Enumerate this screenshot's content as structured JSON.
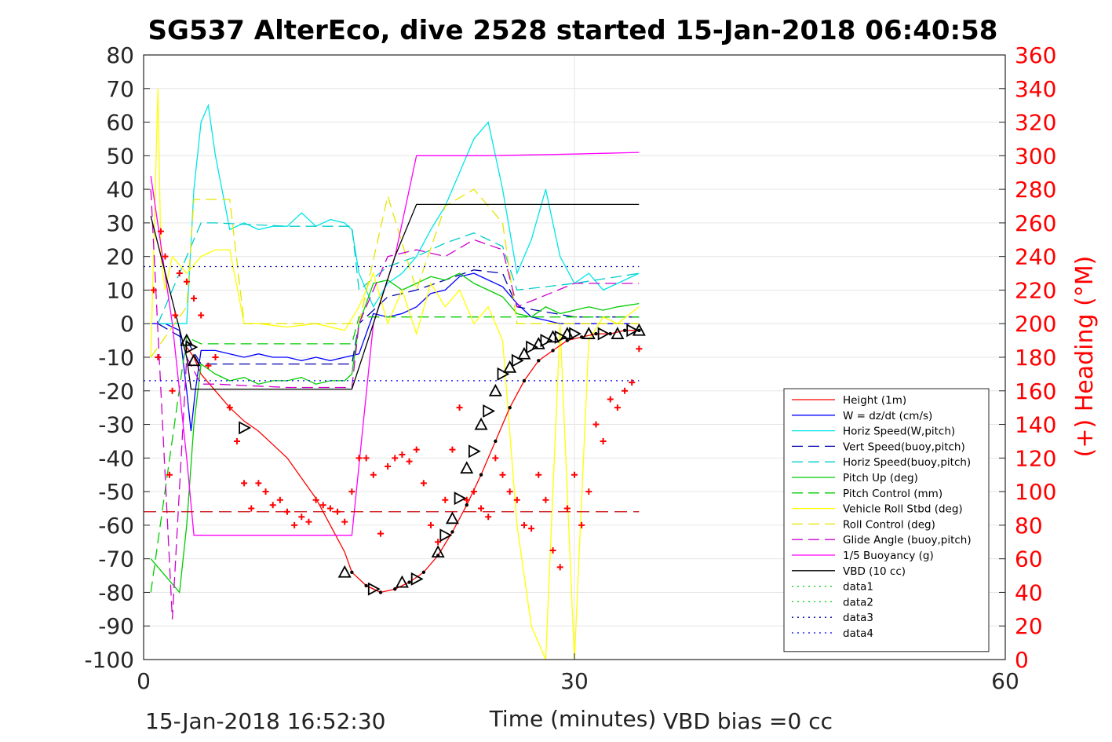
{
  "chart_data": {
    "type": "line",
    "title": "SG537 AlterEco, dive 2528 started 15-Jan-2018 06:40:58",
    "xlabel": "Time (minutes)",
    "ylabel_right": "(+) Heading (°M)",
    "xlim": [
      0,
      60
    ],
    "ylim_left": [
      -100,
      80
    ],
    "ylim_right": [
      0,
      360
    ],
    "x_ticks": [
      "0",
      "30",
      "60"
    ],
    "y_ticks_left": [
      "80",
      "70",
      "60",
      "50",
      "40",
      "30",
      "20",
      "10",
      "0",
      "-10",
      "-20",
      "-30",
      "-40",
      "-50",
      "-60",
      "-70",
      "-80",
      "-90",
      "-100"
    ],
    "y_ticks_right": [
      "360",
      "340",
      "320",
      "300",
      "280",
      "260",
      "240",
      "220",
      "200",
      "180",
      "160",
      "140",
      "120",
      "100",
      "80",
      "60",
      "40",
      "20",
      "0"
    ],
    "grid": true,
    "legend_position": "lower-right",
    "colors": {
      "height": "#ff0000",
      "w": "#0000ff",
      "horiz_w": "#00e6e6",
      "vert_buoy": "#0000aa",
      "horiz_buoy": "#00cccc",
      "pitch": "#00cc00",
      "pitch_ctrl": "#00cc00",
      "roll": "#ffff00",
      "roll_ctrl": "#e6e600",
      "glide": "#cc00cc",
      "buoy": "#ff00ff",
      "vbd": "#000000",
      "heading_marker": "#ff0000"
    },
    "series": [
      {
        "name": "Height (1m)",
        "style": "solid",
        "color": "#ff0000",
        "x": [
          3.0,
          3.5,
          4.0,
          5.0,
          6.0,
          7.0,
          8.0,
          9.0,
          10.0,
          11.0,
          12.0,
          13.0,
          14.0,
          14.5
        ],
        "y": [
          -7,
          -10,
          -15,
          -20,
          -25,
          -29,
          -32,
          -36,
          -40,
          -46,
          -52,
          -60,
          -68,
          -74
        ]
      },
      {
        "name": "W = dz/dt (cm/s)",
        "style": "solid",
        "color": "#0000ff",
        "x": [
          0.5,
          1.5,
          2.5,
          3.0,
          3.3,
          3.6,
          4.0,
          5,
          6,
          7,
          8,
          9,
          10,
          11,
          12,
          13,
          14,
          15,
          16,
          17,
          18,
          19,
          20,
          21,
          22,
          23,
          24,
          25,
          26,
          27,
          28,
          29,
          30,
          31,
          32,
          33,
          34.5
        ],
        "y": [
          0,
          0,
          -2,
          -20,
          -32,
          -20,
          -8,
          -8,
          -9,
          -10,
          -9,
          -10,
          -10,
          -11,
          -10,
          -11,
          -10,
          -9,
          3,
          2,
          3,
          5,
          9,
          10,
          14,
          15,
          13,
          11,
          6,
          2,
          1,
          0,
          0,
          0,
          0,
          0,
          0
        ]
      },
      {
        "name": "Horiz Speed(W,pitch)",
        "style": "solid",
        "color": "#00e6e6",
        "x": [
          1,
          2,
          3,
          3.5,
          4,
          4.5,
          5,
          6,
          7,
          8,
          9,
          10,
          11,
          12,
          13,
          14,
          14.5,
          15,
          16,
          17,
          18,
          19,
          20,
          21,
          22,
          23,
          24,
          25,
          26,
          27,
          28,
          29,
          30,
          31,
          32,
          33,
          34.5
        ],
        "y": [
          0,
          0,
          0,
          40,
          60,
          65,
          50,
          28,
          30,
          28,
          29,
          29,
          33,
          29,
          31,
          30,
          28,
          15,
          5,
          12,
          15,
          20,
          28,
          35,
          45,
          55,
          60,
          40,
          15,
          25,
          40,
          20,
          12,
          15,
          10,
          12,
          15
        ]
      },
      {
        "name": "Vert Speed(buoy,pitch)",
        "style": "dashed",
        "color": "#0000aa",
        "x": [
          1,
          3,
          4,
          5,
          10,
          14.5,
          15,
          17,
          19,
          21,
          23,
          25,
          26,
          30,
          34.5
        ],
        "y": [
          0,
          -5,
          -12,
          -12,
          -12,
          -12,
          0,
          8,
          10,
          13,
          16,
          15,
          5,
          2,
          2
        ]
      },
      {
        "name": "Horiz Speed(buoy,pitch)",
        "style": "dashed",
        "color": "#00cccc",
        "x": [
          1,
          3,
          4,
          5,
          10,
          14.5,
          15,
          17,
          19,
          21,
          23,
          25,
          26,
          30,
          34.5
        ],
        "y": [
          0,
          20,
          30,
          30,
          29,
          29,
          10,
          17,
          20,
          24,
          27,
          23,
          10,
          12,
          15
        ]
      },
      {
        "name": "Pitch Up (deg)",
        "style": "solid",
        "color": "#00cc00",
        "x": [
          0.5,
          1.5,
          2.5,
          3.0,
          3.5,
          4,
          5,
          6,
          7,
          8,
          9,
          10,
          11,
          12,
          13,
          14,
          14.5,
          15,
          16,
          17,
          18,
          19,
          20,
          21,
          22,
          23,
          24,
          25,
          26,
          27,
          28,
          29,
          30,
          31,
          32,
          33,
          34.5
        ],
        "y": [
          -70,
          -75,
          -80,
          -60,
          -30,
          -12,
          -15,
          -17,
          -16,
          -18,
          -17,
          -17,
          -16,
          -18,
          -17,
          -17,
          -15,
          0,
          12,
          13,
          10,
          12,
          14,
          13,
          15,
          12,
          10,
          8,
          3,
          2,
          5,
          3,
          4,
          5,
          4,
          5,
          6
        ]
      },
      {
        "name": "Pitch Control (mm)",
        "style": "dashed",
        "color": "#00cc00",
        "x": [
          0.5,
          3,
          4,
          14.5,
          15,
          17,
          26,
          30,
          34.5
        ],
        "y": [
          -80,
          -4,
          -6,
          -6,
          2,
          2,
          2,
          2,
          2
        ]
      },
      {
        "name": "Vehicle Roll Stbd (deg)",
        "style": "solid",
        "color": "#ffff00",
        "x": [
          0.5,
          1.0,
          1.2,
          1.5,
          2,
          3,
          4,
          5,
          6,
          7,
          8,
          10,
          12,
          14,
          15,
          16,
          17,
          18,
          19,
          20,
          21,
          22,
          23,
          24,
          25,
          26,
          27,
          28,
          29,
          30,
          31,
          32,
          33,
          34.5
        ],
        "y": [
          -10,
          70,
          20,
          10,
          20,
          15,
          20,
          22,
          22,
          0,
          0,
          -1,
          0,
          -2,
          5,
          15,
          0,
          10,
          -3,
          12,
          5,
          10,
          0,
          5,
          -5,
          -60,
          -90,
          -100,
          0,
          -100,
          -5,
          2,
          0,
          5
        ]
      },
      {
        "name": "Roll Control (deg)",
        "style": "dashed",
        "color": "#e6e600",
        "x": [
          0.5,
          3,
          3.5,
          6,
          7,
          14.5,
          15,
          17,
          19,
          21,
          23,
          25,
          26,
          30,
          34.5
        ],
        "y": [
          -10,
          5,
          37,
          37,
          0,
          0,
          0,
          38,
          10,
          35,
          40,
          30,
          0,
          0,
          0
        ]
      },
      {
        "name": "Glide Angle (buoy,pitch)",
        "style": "dashed",
        "color": "#cc00cc",
        "x": [
          0.5,
          2,
          3,
          4,
          5,
          10,
          14.5,
          15,
          17,
          19,
          21,
          23,
          25,
          26,
          30,
          34.5
        ],
        "y": [
          40,
          -88,
          -10,
          -18,
          -18,
          -19,
          -19,
          0,
          20,
          22,
          20,
          25,
          22,
          5,
          12,
          12
        ]
      },
      {
        "name": "1/5 Buoyancy (g)",
        "style": "solid",
        "color": "#ff00ff",
        "x": [
          0.5,
          2,
          3,
          3.5,
          14.5,
          16,
          17.5,
          19,
          24,
          30,
          34.5
        ],
        "y": [
          44,
          0,
          -40,
          -63,
          -63,
          0,
          20,
          50,
          50,
          50.5,
          51
        ]
      },
      {
        "name": "VBD (10 cc)",
        "style": "solid",
        "color": "#000000",
        "x": [
          0.5,
          3,
          3.3,
          14.5,
          16,
          17.5,
          19,
          24,
          30,
          34.5
        ],
        "y": [
          32,
          -10,
          -19.5,
          -19.5,
          0,
          20,
          35.5,
          35.5,
          35.5,
          35.5
        ]
      },
      {
        "name": "data1",
        "style": "dotted",
        "color": "#00cc00",
        "x": [],
        "y": []
      },
      {
        "name": "data2",
        "style": "dotted",
        "color": "#00cc00",
        "x": [],
        "y": []
      },
      {
        "name": "data3",
        "style": "dotted",
        "color": "#0000aa",
        "x": [
          0,
          34.5
        ],
        "y": [
          17,
          17
        ]
      },
      {
        "name": "data4",
        "style": "dotted",
        "color": "#0000ff",
        "x": [
          0,
          34.5
        ],
        "y": [
          -17,
          -17
        ]
      }
    ],
    "depth_profile": {
      "x": [
        14.5,
        15.5,
        16.5,
        17.5,
        18.5,
        19.5,
        20.5,
        21.5,
        22.5,
        23.5,
        24.5,
        25.5,
        26.5,
        27.5,
        28.5,
        29.5,
        30.5,
        31.5,
        32.5,
        33.5,
        34.5
      ],
      "y": [
        -74,
        -78,
        -80,
        -79,
        -77,
        -74,
        -69,
        -62,
        -54,
        -45,
        -35,
        -25,
        -17,
        -11,
        -8,
        -5,
        -4,
        -3,
        -3,
        -2,
        -2
      ]
    },
    "height_dashed": {
      "x": [
        0,
        34.5
      ],
      "y": [
        -56,
        -56
      ]
    },
    "heading_markers": {
      "x": [
        0.7,
        1.0,
        1.2,
        1.5,
        1.8,
        2.0,
        2.2,
        2.5,
        3.0,
        3.5,
        4.0,
        4.5,
        5,
        6,
        6.5,
        7,
        7.5,
        8,
        8.5,
        9,
        9.5,
        10,
        10.5,
        11,
        11.5,
        12,
        12.5,
        13,
        13.5,
        14,
        14.5,
        15,
        15.5,
        16,
        16.5,
        17,
        17.5,
        18,
        18.5,
        19,
        19.5,
        20,
        20.5,
        21,
        21.5,
        22,
        22.5,
        23,
        23.5,
        24,
        24.5,
        25,
        25.5,
        26,
        26.5,
        27,
        27.5,
        28,
        28.5,
        29,
        29.5,
        30,
        30.5,
        31,
        31.5,
        32,
        32.5,
        33,
        33.5,
        34,
        34.5
      ],
      "y": [
        220,
        180,
        255,
        240,
        110,
        160,
        205,
        230,
        225,
        215,
        205,
        175,
        180,
        150,
        130,
        105,
        90,
        105,
        100,
        92,
        95,
        88,
        80,
        85,
        82,
        95,
        92,
        90,
        88,
        82,
        100,
        120,
        120,
        110,
        75,
        115,
        120,
        122,
        118,
        125,
        105,
        80,
        70,
        95,
        125,
        150,
        95,
        100,
        90,
        85,
        120,
        110,
        100,
        95,
        80,
        78,
        110,
        95,
        65,
        55,
        90,
        110,
        80,
        100,
        140,
        130,
        155,
        150,
        160,
        165,
        185
      ]
    },
    "dir_markers": {
      "x": [
        3.0,
        3.3,
        3.5,
        7.0,
        14.0,
        16.0,
        18.0,
        19.0,
        20.5,
        21.0,
        21.5,
        22.0,
        22.5,
        23.0,
        23.5,
        24.0,
        24.5,
        25.0,
        25.5,
        26.0,
        26.5,
        27.0,
        27.5,
        28.0,
        28.5,
        29.0,
        29.5,
        30.0,
        31.0,
        32.0,
        33.0,
        34.0,
        34.5
      ],
      "y": [
        -5,
        -7,
        -11,
        -31,
        -74,
        -79,
        -77,
        -76,
        -68,
        -63,
        -58,
        -52,
        -43,
        -38,
        -30,
        -26,
        -20,
        -15,
        -13,
        -11,
        -9,
        -7,
        -6,
        -5,
        -4,
        -4,
        -3,
        -3,
        -3,
        -3,
        -3,
        -2,
        -2
      ]
    }
  },
  "footer": {
    "timestamp": "15-Jan-2018 16:52:30",
    "vbd_bias": "VBD bias =0 cc"
  }
}
